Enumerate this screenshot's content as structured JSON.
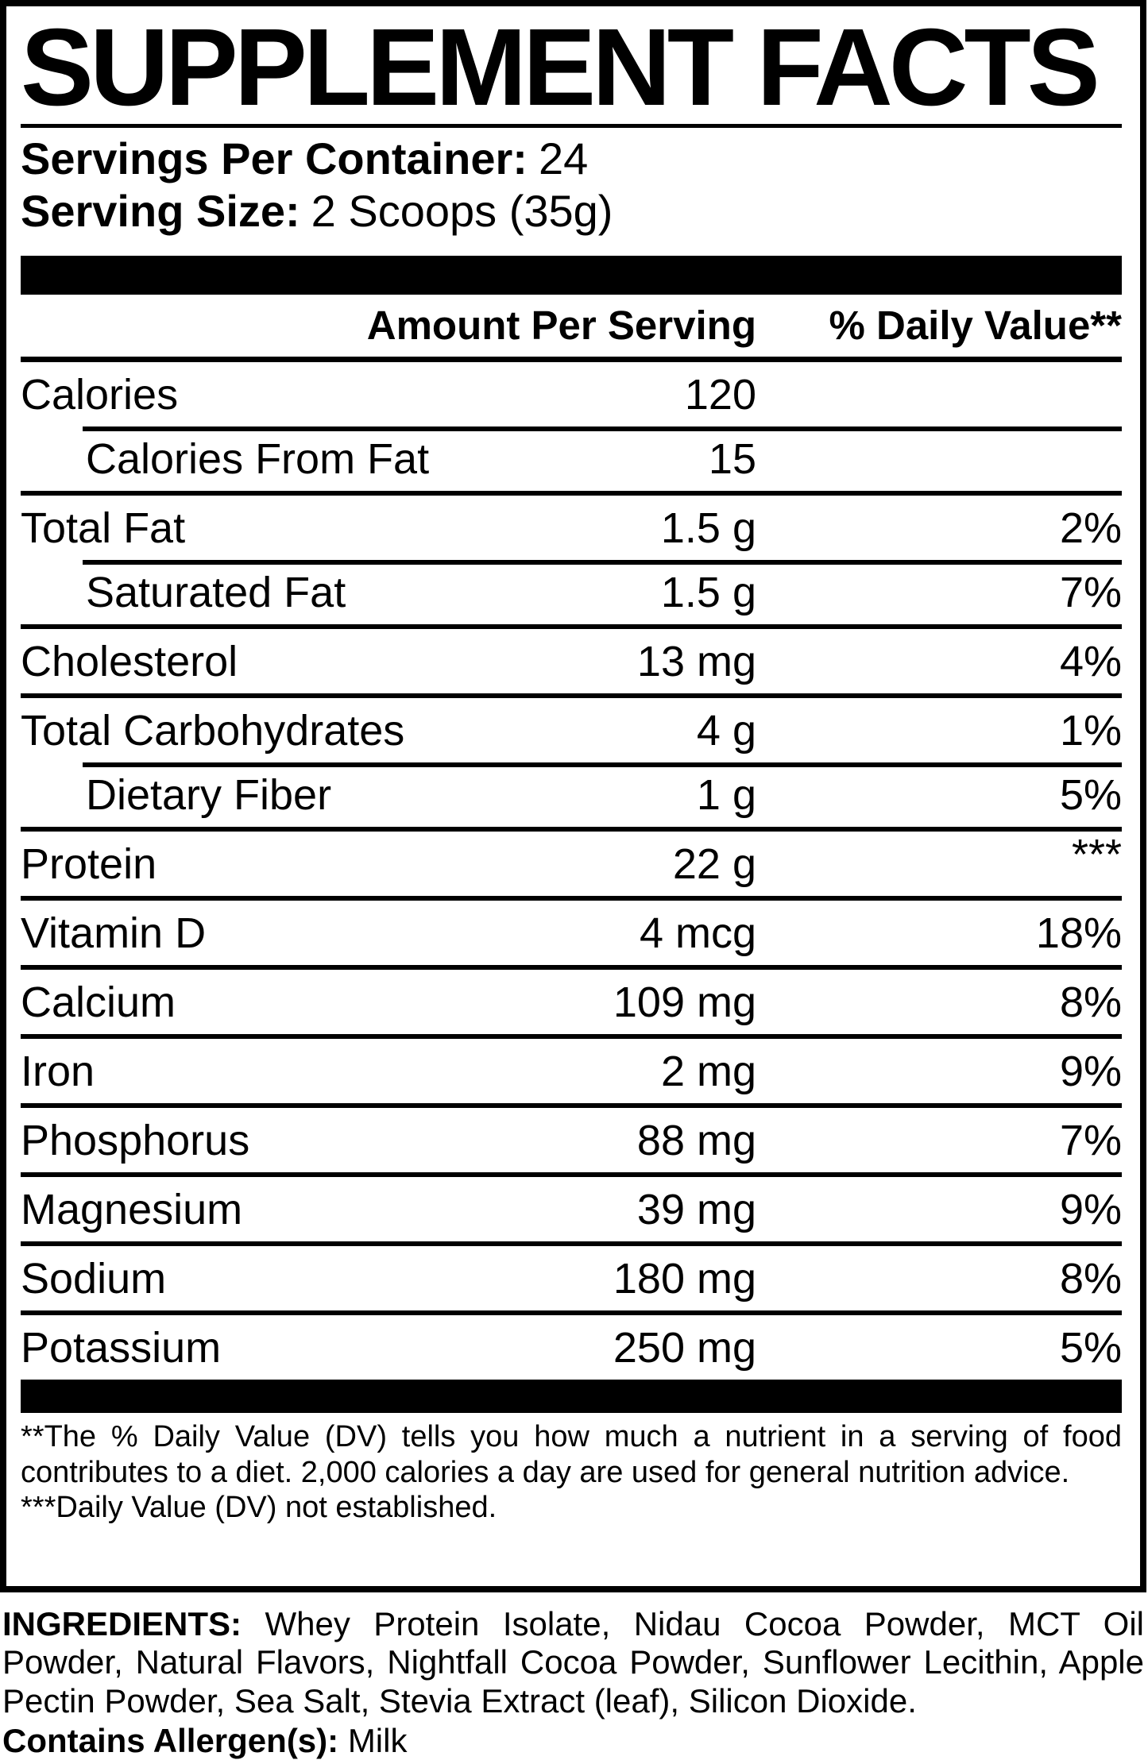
{
  "title": "SUPPLEMENT FACTS",
  "servings_per_container": {
    "label": "Servings Per Container:",
    "value": "24"
  },
  "serving_size": {
    "label": "Serving Size:",
    "value": "2 Scoops (35g)"
  },
  "table": {
    "header": {
      "amount": "Amount Per Serving",
      "dv": "% Daily Value**"
    },
    "rows": [
      {
        "name": "Calories",
        "amount": "120",
        "dv": ""
      },
      {
        "name": "Calories From Fat",
        "amount": "15",
        "dv": ""
      },
      {
        "name": "Total Fat",
        "amount": "1.5 g",
        "dv": "2%"
      },
      {
        "name": "Saturated Fat",
        "amount": "1.5 g",
        "dv": "7%"
      },
      {
        "name": "Cholesterol",
        "amount": "13 mg",
        "dv": "4%"
      },
      {
        "name": "Total Carbohydrates",
        "amount": "4 g",
        "dv": "1%"
      },
      {
        "name": "Dietary Fiber",
        "amount": "1 g",
        "dv": "5%"
      },
      {
        "name": "Protein",
        "amount": "22 g",
        "dv": "***"
      },
      {
        "name": "Vitamin D",
        "amount": "4 mcg",
        "dv": "18%"
      },
      {
        "name": "Calcium",
        "amount": "109 mg",
        "dv": "8%"
      },
      {
        "name": "Iron",
        "amount": "2 mg",
        "dv": "9%"
      },
      {
        "name": "Phosphorus",
        "amount": "88 mg",
        "dv": "7%"
      },
      {
        "name": "Magnesium",
        "amount": "39 mg",
        "dv": "9%"
      },
      {
        "name": "Sodium",
        "amount": "180 mg",
        "dv": "8%"
      },
      {
        "name": "Potassium",
        "amount": "250 mg",
        "dv": "5%"
      }
    ]
  },
  "footnotes": {
    "dv_note": "**The % Daily Value (DV) tells you how much a nutrient in a serving of food contributes to a diet. 2,000 calories a day are used for general nutrition advice.",
    "not_established_note": "***Daily Value (DV) not established."
  },
  "ingredients": {
    "label": "INGREDIENTS:",
    "text": "Whey Protein Isolate, Nidau Cocoa Powder, MCT Oil Powder, Natural Flavors, Nightfall Cocoa Powder, Sunflower Lecithin, Apple Pectin Powder, Sea Salt, Stevia Extract (leaf), Silicon Dioxide."
  },
  "allergens": {
    "label": "Contains Allergen(s):",
    "value": "Milk"
  }
}
